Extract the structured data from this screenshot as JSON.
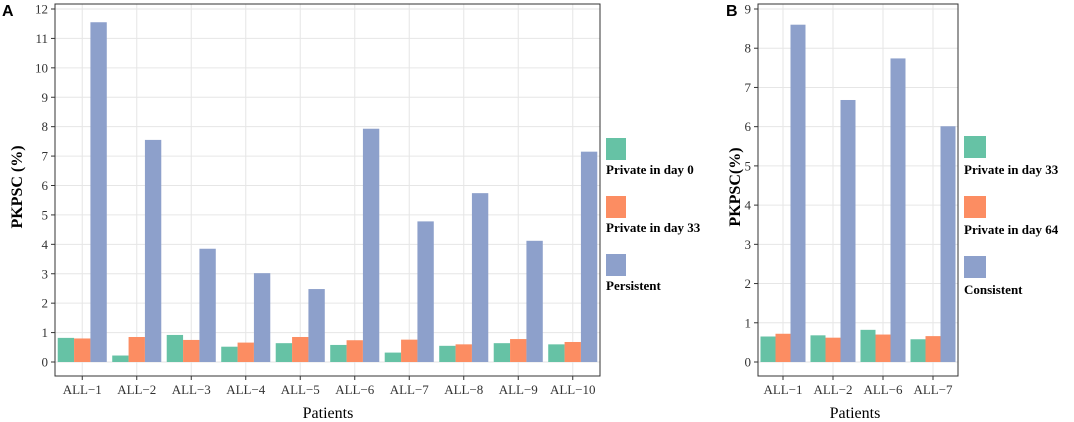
{
  "chart_data": [
    {
      "panel": "A",
      "type": "bar",
      "categories": [
        "ALL−1",
        "ALL−2",
        "ALL−3",
        "ALL−4",
        "ALL−5",
        "ALL−6",
        "ALL−7",
        "ALL−8",
        "ALL−9",
        "ALL−10"
      ],
      "series": [
        {
          "name": "Private in day 0",
          "color": "#66c2a5",
          "values": [
            0.82,
            0.22,
            0.92,
            0.52,
            0.64,
            0.58,
            0.32,
            0.55,
            0.64,
            0.6
          ]
        },
        {
          "name": "Private in day 33",
          "color": "#fc8d62",
          "values": [
            0.8,
            0.85,
            0.75,
            0.66,
            0.85,
            0.74,
            0.76,
            0.6,
            0.78,
            0.68
          ]
        },
        {
          "name": "Persistent",
          "color": "#8da0cb",
          "values": [
            11.55,
            7.55,
            3.85,
            3.02,
            2.48,
            7.93,
            4.78,
            5.74,
            4.12,
            7.15
          ]
        }
      ],
      "yticks": [
        0,
        1,
        2,
        3,
        4,
        5,
        6,
        7,
        8,
        9,
        10,
        11,
        12
      ],
      "ylim": [
        0,
        12
      ],
      "xlabel": "Patients",
      "ylabel": "PKPSC (%)"
    },
    {
      "panel": "B",
      "type": "bar",
      "categories": [
        "ALL−1",
        "ALL−2",
        "ALL−6",
        "ALL−7"
      ],
      "series": [
        {
          "name": "Private in day 33",
          "color": "#66c2a5",
          "values": [
            0.65,
            0.68,
            0.82,
            0.58
          ]
        },
        {
          "name": "Private in day 64",
          "color": "#fc8d62",
          "values": [
            0.72,
            0.62,
            0.7,
            0.66
          ]
        },
        {
          "name": "Consistent",
          "color": "#8da0cb",
          "values": [
            8.6,
            6.68,
            7.74,
            6.01
          ]
        }
      ],
      "yticks": [
        0,
        1,
        2,
        3,
        4,
        5,
        6,
        7,
        8,
        9
      ],
      "ylim": [
        0,
        9
      ],
      "xlabel": "Patients",
      "ylabel": "PKPSC(%)"
    }
  ]
}
